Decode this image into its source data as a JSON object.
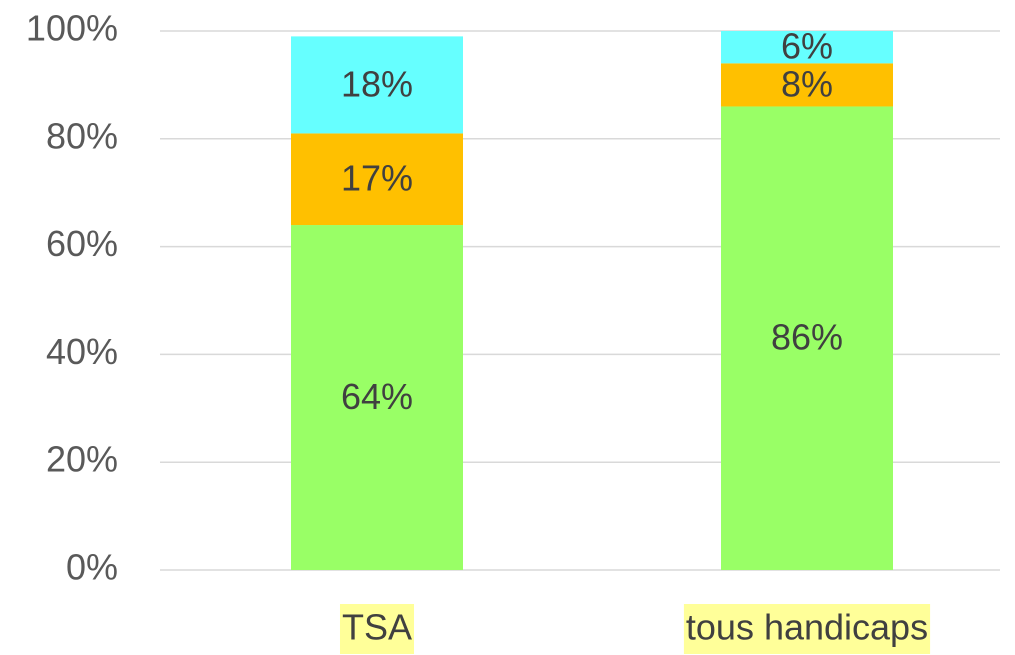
{
  "chart_data": {
    "type": "stacked_bar",
    "categories": [
      "TSA",
      "tous handicaps"
    ],
    "series": [
      {
        "color": "#99ff66",
        "values": [
          64,
          86
        ],
        "value_labels": [
          "64%",
          "86%"
        ]
      },
      {
        "color": "#ffc000",
        "values": [
          17,
          8
        ],
        "value_labels": [
          "17%",
          "8%"
        ]
      },
      {
        "color": "#66ffff",
        "values": [
          18,
          6
        ],
        "value_labels": [
          "18%",
          "6%"
        ]
      }
    ],
    "ylim": [
      0,
      100
    ],
    "yticks": [
      {
        "value": 0,
        "label": "0%"
      },
      {
        "value": 20,
        "label": "20%"
      },
      {
        "value": 40,
        "label": "40%"
      },
      {
        "value": 60,
        "label": "60%"
      },
      {
        "value": 80,
        "label": "80%"
      },
      {
        "value": 100,
        "label": "100%"
      }
    ],
    "grid": true,
    "category_highlight": "#ffff99"
  }
}
